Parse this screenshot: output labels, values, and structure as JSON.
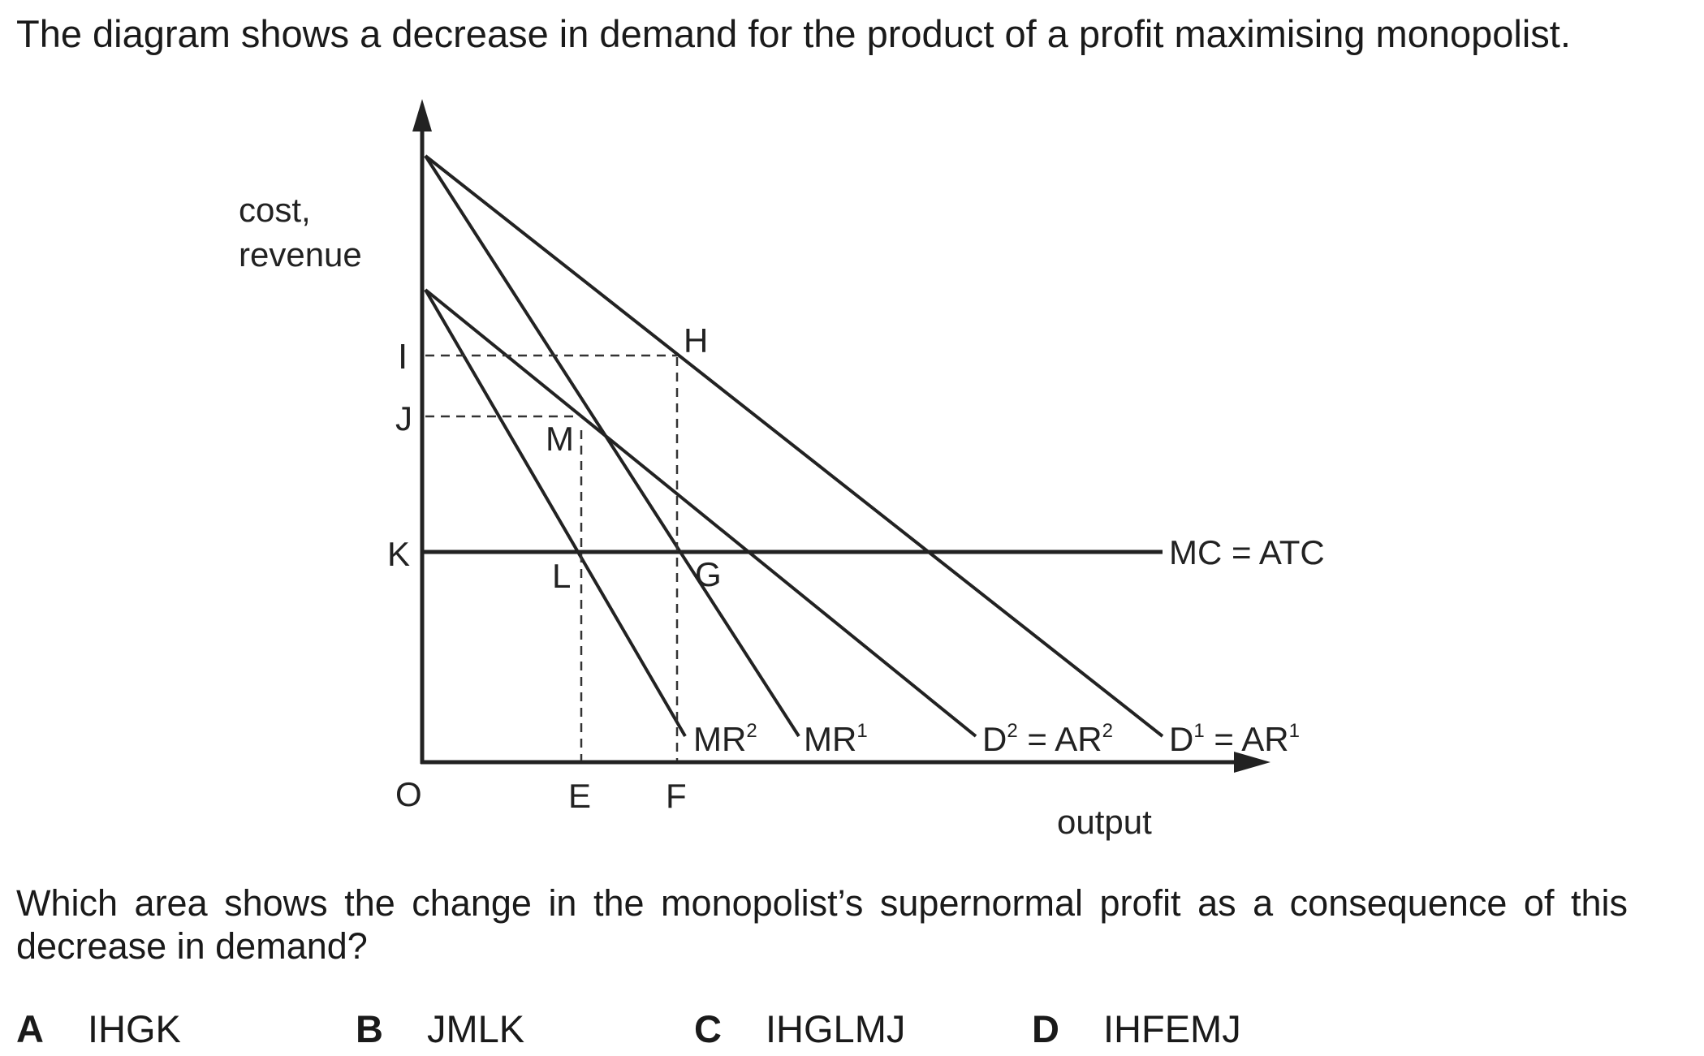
{
  "intro_text": "The diagram shows a decrease in demand for the product of a profit maximising monopolist.",
  "diagram": {
    "y_axis_label_line1": "cost,",
    "y_axis_label_line2": "revenue",
    "x_axis_label": "output",
    "origin_label": "O",
    "points": {
      "I": "I",
      "J": "J",
      "K": "K",
      "H": "H",
      "M": "M",
      "L": "L",
      "G": "G",
      "E": "E",
      "F": "F"
    },
    "curves": {
      "mr2": "MR",
      "mr2_sup": "2",
      "mr1": "MR",
      "mr1_sup": "1",
      "d2_a": "D",
      "d2_sup_a": "2",
      "d2_b": " = AR",
      "d2_sup_b": "2",
      "d1_a": "D",
      "d1_sup_a": "1",
      "d1_b": " = AR",
      "d1_sup_b": "1",
      "mc_atc": "MC = ATC"
    }
  },
  "question_text": "Which area shows the change in the monopolist’s supernormal profit as a consequence of this decrease in demand?",
  "options": [
    {
      "letter": "A",
      "text": "IHGK"
    },
    {
      "letter": "B",
      "text": "JMLK"
    },
    {
      "letter": "C",
      "text": "IHGLMJ"
    },
    {
      "letter": "D",
      "text": "IHFEMJ"
    }
  ]
}
